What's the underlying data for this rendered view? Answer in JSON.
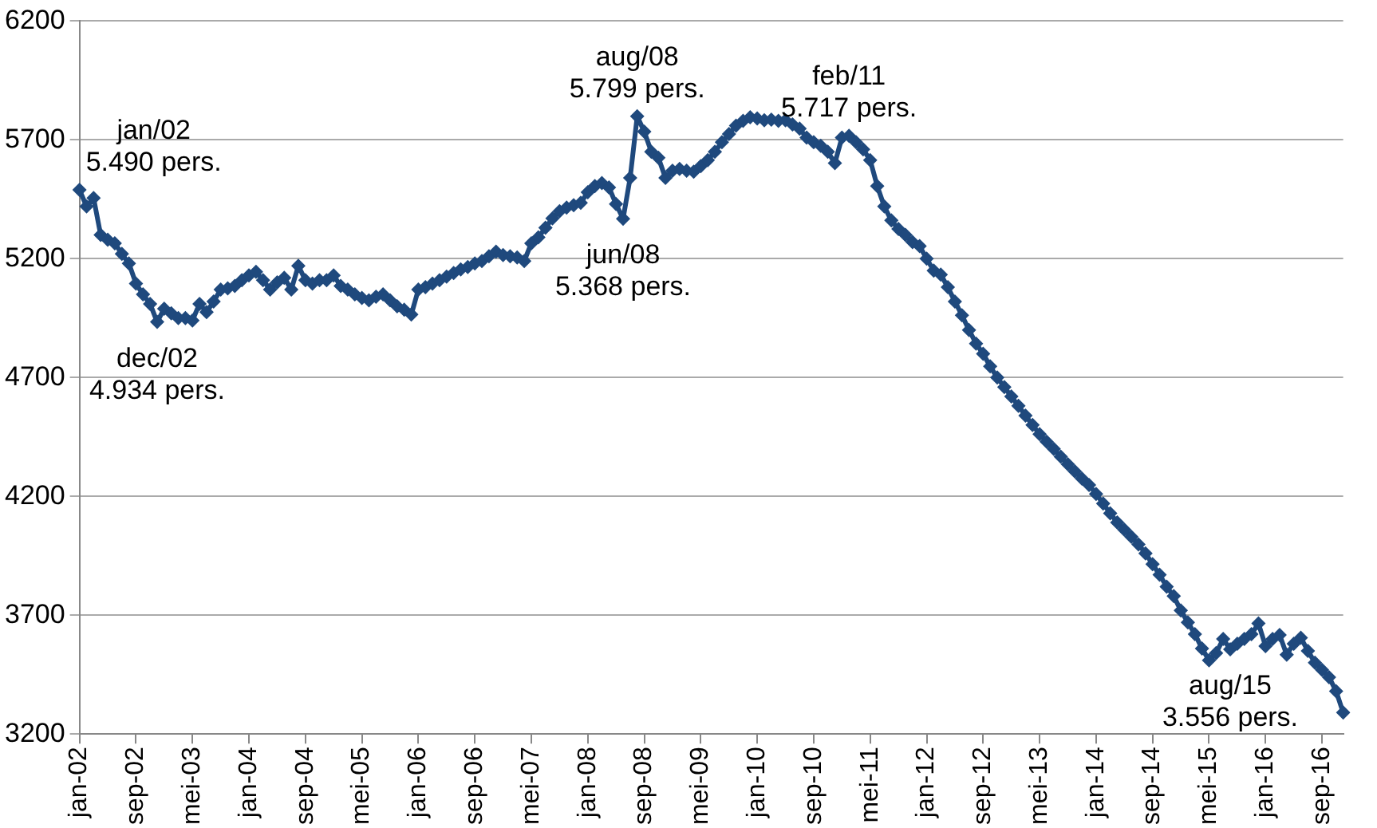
{
  "chart_data": {
    "type": "line",
    "categories": [
      "jan-02",
      null,
      null,
      null,
      null,
      null,
      null,
      null,
      "sep-02",
      null,
      null,
      null,
      null,
      null,
      null,
      null,
      "mei-03",
      null,
      null,
      null,
      null,
      null,
      null,
      null,
      "jan-04",
      null,
      null,
      null,
      null,
      null,
      null,
      null,
      "sep-04",
      null,
      null,
      null,
      null,
      null,
      null,
      null,
      "mei-05",
      null,
      null,
      null,
      null,
      null,
      null,
      null,
      "jan-06",
      null,
      null,
      null,
      null,
      null,
      null,
      null,
      "sep-06",
      null,
      null,
      null,
      null,
      null,
      null,
      null,
      "mei-07",
      null,
      null,
      null,
      null,
      null,
      null,
      null,
      "jan-08",
      null,
      null,
      null,
      null,
      null,
      null,
      null,
      "sep-08",
      null,
      null,
      null,
      null,
      null,
      null,
      null,
      "mei-09",
      null,
      null,
      null,
      null,
      null,
      null,
      null,
      "jan-10",
      null,
      null,
      null,
      null,
      null,
      null,
      null,
      "sep-10",
      null,
      null,
      null,
      null,
      null,
      null,
      null,
      "mei-11",
      null,
      null,
      null,
      null,
      null,
      null,
      null,
      "jan-12",
      null,
      null,
      null,
      null,
      null,
      null,
      null,
      "sep-12",
      null,
      null,
      null,
      null,
      null,
      null,
      null,
      "mei-13",
      null,
      null,
      null,
      null,
      null,
      null,
      null,
      "jan-14",
      null,
      null,
      null,
      null,
      null,
      null,
      null,
      "sep-14",
      null,
      null,
      null,
      null,
      null,
      null,
      null,
      "mei-15",
      null,
      null,
      null,
      null,
      null,
      null,
      null,
      "jan-16",
      null,
      null,
      null,
      null,
      null,
      null,
      null,
      "sep-16",
      null,
      null,
      null
    ],
    "values": [
      5490,
      5420,
      5455,
      5300,
      5280,
      5265,
      5220,
      5180,
      5095,
      5050,
      5010,
      4934,
      4990,
      4970,
      4950,
      4950,
      4940,
      5010,
      4975,
      5020,
      5070,
      5075,
      5085,
      5110,
      5130,
      5145,
      5110,
      5070,
      5100,
      5120,
      5070,
      5170,
      5110,
      5095,
      5110,
      5110,
      5130,
      5085,
      5070,
      5050,
      5035,
      5025,
      5040,
      5050,
      5025,
      5000,
      4985,
      4965,
      5070,
      5080,
      5095,
      5110,
      5125,
      5140,
      5155,
      5165,
      5180,
      5190,
      5210,
      5230,
      5215,
      5210,
      5205,
      5190,
      5265,
      5290,
      5330,
      5370,
      5400,
      5415,
      5425,
      5435,
      5480,
      5506,
      5518,
      5500,
      5430,
      5368,
      5540,
      5799,
      5735,
      5650,
      5625,
      5540,
      5570,
      5578,
      5570,
      5566,
      5590,
      5615,
      5650,
      5690,
      5725,
      5760,
      5780,
      5795,
      5790,
      5783,
      5785,
      5780,
      5783,
      5765,
      5747,
      5710,
      5690,
      5675,
      5650,
      5602,
      5710,
      5717,
      5690,
      5660,
      5615,
      5506,
      5420,
      5361,
      5325,
      5300,
      5270,
      5253,
      5200,
      5150,
      5133,
      5080,
      5020,
      4962,
      4900,
      4843,
      4800,
      4747,
      4700,
      4660,
      4620,
      4581,
      4540,
      4500,
      4462,
      4430,
      4400,
      4367,
      4335,
      4305,
      4275,
      4248,
      4210,
      4170,
      4129,
      4090,
      4060,
      4030,
      3998,
      3960,
      3915,
      3870,
      3820,
      3780,
      3720,
      3670,
      3620,
      3560,
      3510,
      3540,
      3600,
      3556,
      3580,
      3600,
      3620,
      3665,
      3570,
      3600,
      3617,
      3534,
      3580,
      3605,
      3550,
      3500,
      3470,
      3439,
      3380,
      3290
    ],
    "color": "#1f497d",
    "marker": "diamond",
    "line_style": "solid",
    "ylim": [
      3200,
      6200
    ],
    "yticks": [
      3200,
      3700,
      4200,
      4700,
      5200,
      5700,
      6200
    ],
    "grid": "y",
    "legend": false,
    "annotations": [
      {
        "text": "jan/02\n5.490 pers.",
        "x": "jan-02",
        "y": 5490
      },
      {
        "text": "dec/02\n4.934 pers.",
        "y": 4934
      },
      {
        "text": "jun/08\n5.368 pers.",
        "y": 5368
      },
      {
        "text": "aug/08\n5.799 pers.",
        "y": 5799
      },
      {
        "text": "feb/11\n5.717 pers.",
        "y": 5717
      },
      {
        "text": "aug/15\n3.556 pers.",
        "y": 3556
      }
    ]
  }
}
